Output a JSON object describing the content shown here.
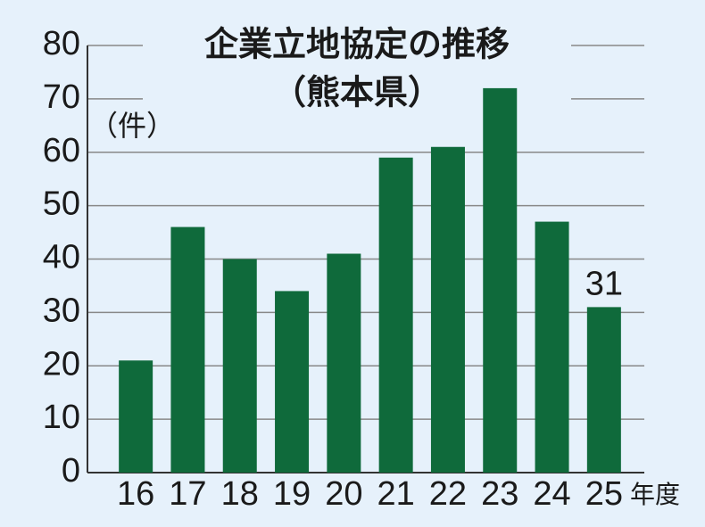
{
  "chart_data": {
    "type": "bar",
    "title": "企業立地協定の推移",
    "subtitle": "（熊本県）",
    "y_label": "（件）",
    "x_label": "年度",
    "categories": [
      "16",
      "17",
      "18",
      "19",
      "20",
      "21",
      "22",
      "23",
      "24",
      "25"
    ],
    "values": [
      21,
      46,
      40,
      34,
      41,
      59,
      61,
      72,
      47,
      31
    ],
    "color": "#0f6a3b",
    "ylim": [
      0,
      80
    ],
    "yticks": [
      0,
      10,
      20,
      30,
      40,
      50,
      60,
      70,
      80
    ],
    "grid": true
  }
}
